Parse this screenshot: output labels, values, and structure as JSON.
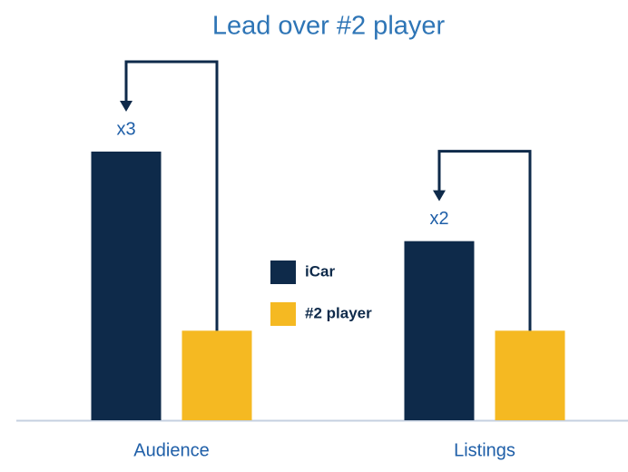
{
  "chart_data": {
    "type": "bar",
    "title": "Lead over #2 player",
    "categories": [
      "Audience",
      "Listings"
    ],
    "series": [
      {
        "name": "iCar",
        "color": "#0e2a4a",
        "values": [
          3,
          2
        ]
      },
      {
        "name": "#2 player",
        "color": "#f5b922",
        "values": [
          1,
          1
        ]
      }
    ],
    "annotations": [
      "x3",
      "x2"
    ],
    "legend": "center"
  }
}
